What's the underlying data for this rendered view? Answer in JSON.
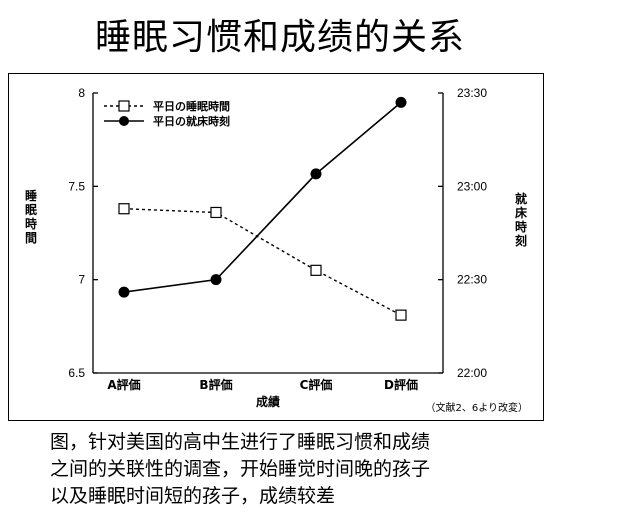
{
  "page": {
    "title": "睡眠习惯和成绩的关系",
    "caption_lines": [
      "图，针对美国的高中生进行了睡眠习惯和成绩",
      "之间的关联性的调查，开始睡觉时间晚的孩子",
      "以及睡眠时间短的孩子，成绩较差"
    ]
  },
  "chart_data": {
    "type": "line",
    "categories": [
      "A評価",
      "B評価",
      "C評価",
      "D評価"
    ],
    "xlabel": "成績",
    "ylabel_left": "睡眠時間",
    "ylabel_right": "就床時刻",
    "left_axis": {
      "ylim": [
        6.5,
        8
      ],
      "ticks": [
        6.5,
        7,
        7.5,
        8
      ],
      "tick_labels": [
        "6.5",
        "7",
        "7.5",
        "8"
      ]
    },
    "right_axis": {
      "ylim": [
        "22:00",
        "23:30"
      ],
      "ticks": [
        "22:00",
        "22:30",
        "23:00",
        "23:30"
      ],
      "tick_labels": [
        "22:00",
        "22:30",
        "23:00",
        "23:30"
      ]
    },
    "series": [
      {
        "name": "平日の睡眠時間",
        "axis": "left",
        "marker": "open-square",
        "line": "dotted",
        "values": [
          7.38,
          7.36,
          7.05,
          6.81
        ]
      },
      {
        "name": "平日の就床時刻",
        "axis": "right",
        "marker": "filled-circle",
        "line": "solid",
        "values": [
          "22:26",
          "22:30",
          "23:04",
          "23:27"
        ]
      }
    ],
    "legend_position": "top-left",
    "grid": false,
    "note": "（文献2、6より改変）"
  }
}
